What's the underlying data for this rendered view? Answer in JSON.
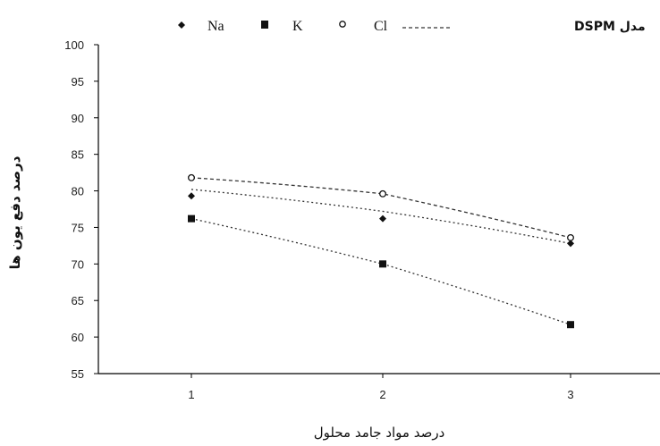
{
  "chart_data": {
    "type": "line",
    "categories": [
      "1",
      "2",
      "3"
    ],
    "x": [
      1,
      2,
      3
    ],
    "series": [
      {
        "name": "Na",
        "marker": "diamond",
        "values": [
          79.3,
          76.2,
          72.8
        ],
        "model": [
          80.2,
          77.2,
          72.8
        ]
      },
      {
        "name": "K",
        "marker": "square",
        "values": [
          76.2,
          70.0,
          61.7
        ],
        "model": [
          76.2,
          70.0,
          61.7
        ]
      },
      {
        "name": "Cl",
        "marker": "circle",
        "values": [
          81.8,
          79.6,
          73.6
        ],
        "model": [
          81.8,
          79.6,
          73.6
        ]
      }
    ],
    "legend_model_label": "مدل DSPM",
    "legend_model_style": "dashed",
    "xlabel": "درصد مواد جامد محلول",
    "ylabel": "درصد دفع یون ها",
    "ylim": [
      55,
      100
    ],
    "y_ticks": [
      "55",
      "60",
      "65",
      "70",
      "75",
      "80",
      "85",
      "90",
      "95",
      "100"
    ],
    "x_ticks": [
      "1",
      "2",
      "3"
    ],
    "grid": false,
    "legend_position": "top"
  },
  "colors": {
    "marker": "#111111",
    "line": "#333333",
    "axis": "#000000"
  }
}
